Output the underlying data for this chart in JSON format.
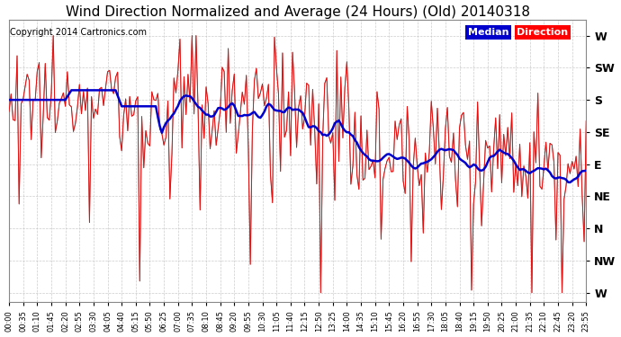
{
  "title": "Wind Direction Normalized and Average (24 Hours) (Old) 20140318",
  "copyright": "Copyright 2014 Cartronics.com",
  "legend_median_label": "Median",
  "legend_direction_label": "Direction",
  "bg_color": "#ffffff",
  "grid_color": "#c0c0c0",
  "direction_line_color": "#ff0000",
  "median_line_color": "#0000cc",
  "dark_line_color": "#000000",
  "num_points": 288,
  "ytick_labels": [
    "W",
    "SW",
    "S",
    "SE",
    "E",
    "NE",
    "N",
    "NW",
    "W"
  ],
  "ytick_positions": [
    8,
    7,
    6,
    5,
    4,
    3,
    2,
    1,
    0
  ],
  "ylim": [
    -0.3,
    8.5
  ],
  "xlim_min": 0,
  "xlim_max": 287,
  "xtick_step": 3,
  "title_fontsize": 11,
  "copyright_fontsize": 7,
  "ytick_fontsize": 9,
  "xtick_fontsize": 6
}
